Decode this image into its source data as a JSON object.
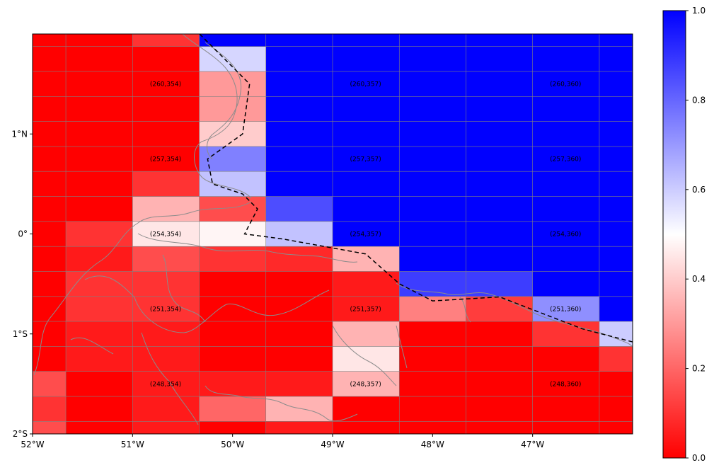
{
  "chart_data": {
    "type": "heatmap",
    "title": "",
    "xlabel": "",
    "ylabel": "",
    "xlim": [
      -52.0,
      -46.0
    ],
    "ylim": [
      -2.0,
      2.0
    ],
    "grid": true,
    "lon_edges": [
      -52.0,
      -51.667,
      -51.0,
      -50.333,
      -49.667,
      -49.0,
      -48.333,
      -47.667,
      -47.0,
      -46.333,
      -46.0
    ],
    "lat_edges": [
      2.0,
      1.875,
      1.625,
      1.375,
      1.125,
      0.875,
      0.625,
      0.375,
      0.125,
      -0.125,
      -0.375,
      -0.625,
      -0.875,
      -1.125,
      -1.375,
      -1.625,
      -1.875,
      -2.0
    ],
    "values": [
      [
        0.0,
        0.0,
        0.1,
        1.0,
        1.0,
        1.0,
        1.0,
        1.0,
        1.0,
        1.0
      ],
      [
        0.0,
        0.0,
        0.0,
        0.58,
        1.0,
        1.0,
        1.0,
        1.0,
        1.0,
        1.0
      ],
      [
        0.0,
        0.0,
        0.0,
        0.3,
        1.0,
        1.0,
        1.0,
        1.0,
        1.0,
        1.0
      ],
      [
        0.0,
        0.0,
        0.0,
        0.3,
        1.0,
        1.0,
        1.0,
        1.0,
        1.0,
        1.0
      ],
      [
        0.0,
        0.0,
        0.0,
        0.4,
        1.0,
        1.0,
        1.0,
        1.0,
        1.0,
        1.0
      ],
      [
        0.0,
        0.0,
        0.0,
        0.75,
        1.0,
        1.0,
        1.0,
        1.0,
        1.0,
        1.0
      ],
      [
        0.0,
        0.0,
        0.1,
        0.62,
        1.0,
        1.0,
        1.0,
        1.0,
        1.0,
        1.0
      ],
      [
        0.0,
        0.0,
        0.35,
        0.15,
        0.85,
        1.0,
        1.0,
        1.0,
        1.0,
        1.0
      ],
      [
        0.0,
        0.1,
        0.45,
        0.48,
        0.62,
        1.0,
        1.0,
        1.0,
        1.0,
        1.0
      ],
      [
        0.0,
        0.05,
        0.15,
        0.1,
        0.08,
        0.35,
        1.0,
        1.0,
        1.0,
        1.0
      ],
      [
        0.0,
        0.1,
        0.1,
        0.0,
        0.0,
        0.05,
        0.88,
        0.88,
        1.0,
        1.0
      ],
      [
        0.0,
        0.1,
        0.1,
        0.0,
        0.0,
        0.05,
        0.25,
        0.12,
        0.72,
        1.0
      ],
      [
        0.0,
        0.05,
        0.05,
        0.0,
        0.0,
        0.35,
        0.0,
        0.0,
        0.1,
        0.6
      ],
      [
        0.0,
        0.05,
        0.05,
        0.0,
        0.0,
        0.45,
        0.0,
        0.0,
        0.0,
        0.1
      ],
      [
        0.15,
        0.0,
        0.05,
        0.05,
        0.05,
        0.35,
        0.0,
        0.0,
        0.0,
        0.0
      ],
      [
        0.1,
        0.0,
        0.05,
        0.2,
        0.35,
        0.0,
        0.0,
        0.0,
        0.0,
        0.0
      ],
      [
        0.15,
        0.0,
        0.05,
        0.0,
        0.05,
        0.0,
        0.0,
        0.0,
        0.0,
        0.0
      ]
    ],
    "xticks": [
      {
        "value": -52,
        "label": "52°W"
      },
      {
        "value": -51,
        "label": "51°W"
      },
      {
        "value": -50,
        "label": "50°W"
      },
      {
        "value": -49,
        "label": "49°W"
      },
      {
        "value": -48,
        "label": "48°W"
      },
      {
        "value": -47,
        "label": "47°W"
      }
    ],
    "yticks": [
      {
        "value": 1,
        "label": "1°N"
      },
      {
        "value": 0,
        "label": "0°"
      },
      {
        "value": -1,
        "label": "1°S"
      },
      {
        "value": -2,
        "label": "2°S"
      }
    ],
    "cell_labels": [
      {
        "lon": -50.67,
        "lat": 1.5,
        "text": "(260,354)"
      },
      {
        "lon": -48.67,
        "lat": 1.5,
        "text": "(260,357)"
      },
      {
        "lon": -46.67,
        "lat": 1.5,
        "text": "(260,360)"
      },
      {
        "lon": -50.67,
        "lat": 0.75,
        "text": "(257,354)"
      },
      {
        "lon": -48.67,
        "lat": 0.75,
        "text": "(257,357)"
      },
      {
        "lon": -46.67,
        "lat": 0.75,
        "text": "(257,360)"
      },
      {
        "lon": -50.67,
        "lat": 0.0,
        "text": "(254,354)"
      },
      {
        "lon": -48.67,
        "lat": 0.0,
        "text": "(254,357)"
      },
      {
        "lon": -46.67,
        "lat": 0.0,
        "text": "(254,360)"
      },
      {
        "lon": -50.67,
        "lat": -0.75,
        "text": "(251,354)"
      },
      {
        "lon": -48.67,
        "lat": -0.75,
        "text": "(251,357)"
      },
      {
        "lon": -46.67,
        "lat": -0.75,
        "text": "(251,360)"
      },
      {
        "lon": -50.67,
        "lat": -1.5,
        "text": "(248,354)"
      },
      {
        "lon": -48.67,
        "lat": -1.5,
        "text": "(248,357)"
      },
      {
        "lon": -46.67,
        "lat": -1.5,
        "text": "(248,360)"
      }
    ],
    "boundary_line": [
      [
        -50.33,
        2.0
      ],
      [
        -49.83,
        1.5
      ],
      [
        -49.9,
        1.0
      ],
      [
        -50.25,
        0.75
      ],
      [
        -50.2,
        0.5
      ],
      [
        -49.9,
        0.4
      ],
      [
        -49.75,
        0.25
      ],
      [
        -49.88,
        0.0
      ],
      [
        -49.5,
        -0.05
      ],
      [
        -48.67,
        -0.2
      ],
      [
        -48.33,
        -0.5
      ],
      [
        -48.0,
        -0.67
      ],
      [
        -47.33,
        -0.63
      ],
      [
        -46.5,
        -0.95
      ],
      [
        -46.0,
        -1.08
      ]
    ],
    "colorbar": {
      "range": [
        0.0,
        1.0
      ],
      "ticks": [
        {
          "value": 0.0,
          "label": "0.0"
        },
        {
          "value": 0.2,
          "label": "0.2"
        },
        {
          "value": 0.4,
          "label": "0.4"
        },
        {
          "value": 0.6,
          "label": "0.6"
        },
        {
          "value": 0.8,
          "label": "0.8"
        },
        {
          "value": 1.0,
          "label": "1.0"
        }
      ],
      "colormap": [
        "#ff0000",
        "#ffffff",
        "#0000ff"
      ]
    }
  }
}
